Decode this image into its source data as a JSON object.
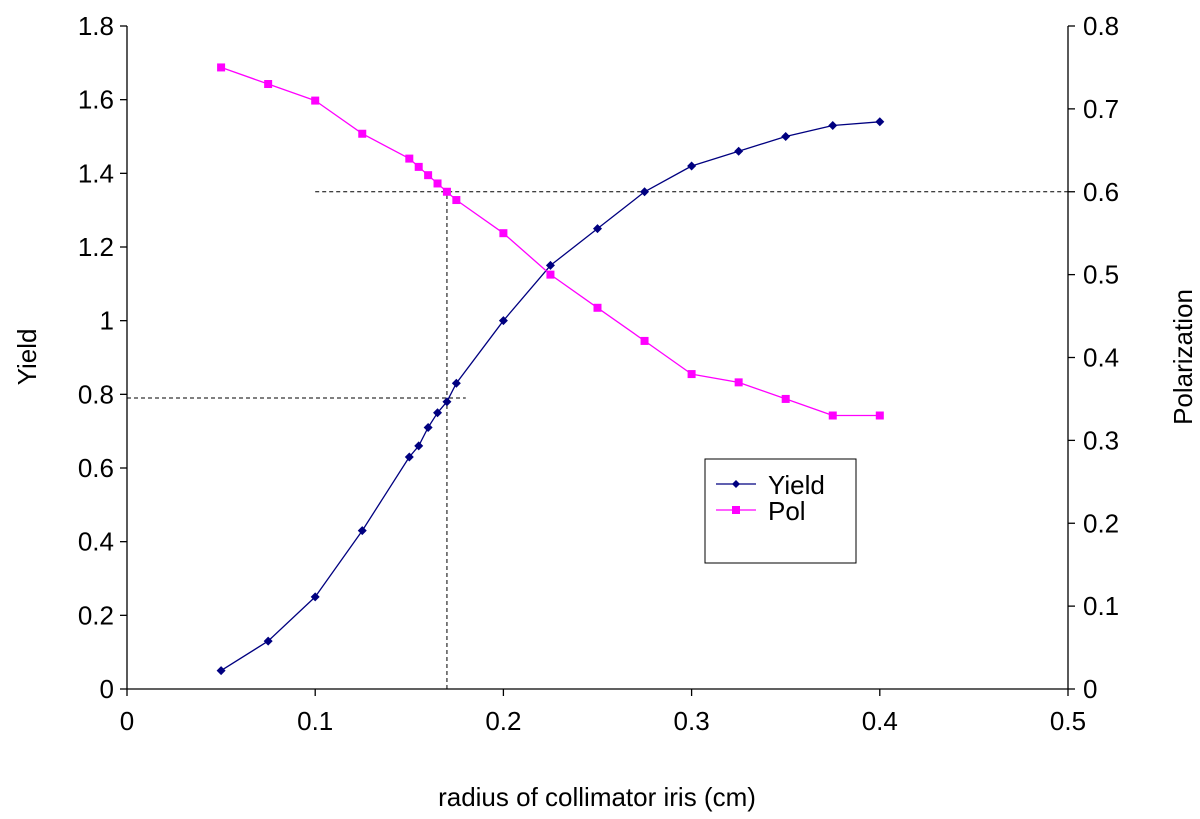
{
  "chart_data": {
    "type": "line",
    "title": "",
    "xlabel": "radius of collimator iris (cm)",
    "ylabel": "Yield",
    "y2label": "Polarization",
    "xlim": [
      0,
      0.5
    ],
    "ylim": [
      0,
      1.8
    ],
    "y2lim": [
      0,
      0.8
    ],
    "xticks": [
      "0",
      "0.1",
      "0.2",
      "0.3",
      "0.4",
      "0.5"
    ],
    "yticks": [
      "0",
      "0.2",
      "0.4",
      "0.6",
      "0.8",
      "1",
      "1.2",
      "1.4",
      "1.6",
      "1.8"
    ],
    "y2ticks": [
      "0",
      "0.1",
      "0.2",
      "0.3",
      "0.4",
      "0.5",
      "0.6",
      "0.7",
      "0.8"
    ],
    "grid": false,
    "legend_position": "center-right",
    "series": [
      {
        "name": "Yield",
        "axis": "left",
        "color": "#000080",
        "marker": "diamond",
        "x": [
          0.05,
          0.075,
          0.1,
          0.125,
          0.15,
          0.155,
          0.16,
          0.165,
          0.17,
          0.175,
          0.2,
          0.225,
          0.25,
          0.275,
          0.3,
          0.325,
          0.35,
          0.375,
          0.4
        ],
        "y": [
          0.05,
          0.13,
          0.25,
          0.43,
          0.63,
          0.66,
          0.71,
          0.75,
          0.78,
          0.83,
          1.0,
          1.15,
          1.25,
          1.35,
          1.42,
          1.46,
          1.5,
          1.53,
          1.54
        ]
      },
      {
        "name": "Pol",
        "axis": "right",
        "color": "#ff00ff",
        "marker": "square",
        "x": [
          0.05,
          0.075,
          0.1,
          0.125,
          0.15,
          0.155,
          0.16,
          0.165,
          0.17,
          0.175,
          0.2,
          0.225,
          0.25,
          0.275,
          0.3,
          0.325,
          0.35,
          0.375,
          0.4
        ],
        "y": [
          0.75,
          0.73,
          0.71,
          0.67,
          0.64,
          0.63,
          0.62,
          0.61,
          0.6,
          0.59,
          0.55,
          0.5,
          0.46,
          0.42,
          0.38,
          0.37,
          0.35,
          0.33,
          0.33
        ]
      }
    ],
    "reference_lines": [
      {
        "kind": "vertical",
        "x": 0.17,
        "y_from": 0,
        "y_to": 1.36,
        "axis": "left"
      },
      {
        "kind": "horizontal",
        "axis": "left",
        "y": 0.79,
        "x_from": 0,
        "x_to": 0.18
      },
      {
        "kind": "horizontal",
        "axis": "right",
        "y": 0.6,
        "x_from": 0.1,
        "x_to": 0.5
      }
    ]
  }
}
